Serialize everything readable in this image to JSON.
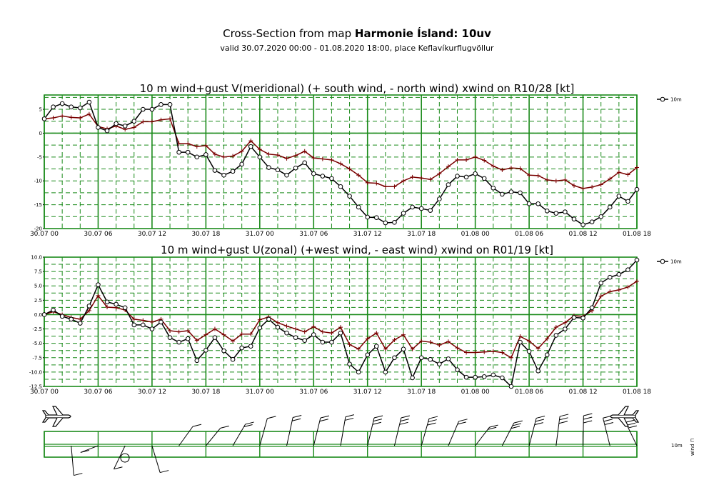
{
  "header": {
    "title_prefix": "Cross-Section from map",
    "title_bold": "Harmonie Ísland: 10uv",
    "subtitle": "valid 30.07.2020 00:00 - 01.08.2020 18:00, place Keflavíkurflugvöllur"
  },
  "colors": {
    "grid": "#1a8a1a",
    "series10m": "#000000",
    "gust": "#7a0000"
  },
  "chart_data": [
    {
      "type": "line",
      "title": "10 m wind+gust V(meridional) (+ south wind, - north wind) xwind on R10/28 [kt]",
      "legend": "10m",
      "x_tick_labels": [
        "30.07 00",
        "30.07 06",
        "30.07 12",
        "30.07 18",
        "31.07 00",
        "31.07 06",
        "31.07 12",
        "31.07 18",
        "01.08 00",
        "01.08 06",
        "01.08 12",
        "01.08 18"
      ],
      "y_tick_labels": [
        "5",
        "0",
        "-5",
        "-10",
        "-15",
        "-20"
      ],
      "y_ticks": [
        5,
        0,
        -5,
        -10,
        -15,
        -20
      ],
      "ylim": [
        -20,
        8
      ],
      "x_hours": [
        0,
        1,
        2,
        3,
        4,
        5,
        6,
        7,
        8,
        9,
        10,
        11,
        12,
        13,
        14,
        15,
        16,
        17,
        18,
        19,
        20,
        21,
        22,
        23,
        24,
        25,
        26,
        27,
        28,
        29,
        30,
        31,
        32,
        33,
        34,
        35,
        36,
        37,
        38,
        39,
        40,
        41,
        42,
        43,
        44,
        45,
        46,
        47,
        48,
        49,
        50,
        51,
        52,
        53,
        54,
        55,
        56,
        57,
        58,
        59,
        60,
        61,
        62,
        63,
        64,
        65,
        66
      ],
      "series": [
        {
          "name": "10m",
          "values": [
            3,
            5.5,
            6.2,
            5.5,
            5.3,
            6.5,
            1.2,
            0.5,
            2,
            1.5,
            2.5,
            5,
            5,
            6,
            6,
            -4,
            -4,
            -5,
            -4.5,
            -7.8,
            -8.8,
            -8,
            -6.5,
            -2.8,
            -5,
            -7.2,
            -7.7,
            -8.8,
            -7.3,
            -6.2,
            -8.5,
            -9,
            -9.5,
            -11.2,
            -13.2,
            -15.5,
            -17.6,
            -17.7,
            -18.8,
            -18.7,
            -16.8,
            -15.5,
            -15.8,
            -16.2,
            -13.8,
            -10.8,
            -9,
            -9.2,
            -8.5,
            -9.5,
            -11.5,
            -12.8,
            -12.3,
            -12.5,
            -14.8,
            -14.8,
            -16.3,
            -16.8,
            -16.5,
            -18,
            -19.2,
            -18.6,
            -17.5,
            -15.5,
            -13.2,
            -14.3,
            -11.8
          ]
        },
        {
          "name": "gust",
          "values": [
            3,
            3.2,
            3.6,
            3.3,
            3.2,
            4,
            1.4,
            0.9,
            1.5,
            0.8,
            1.2,
            2.4,
            2.4,
            2.8,
            3,
            -2.2,
            -2.2,
            -2.8,
            -2.6,
            -4.4,
            -5,
            -4.8,
            -3.8,
            -1.6,
            -3.4,
            -4.4,
            -4.6,
            -5.3,
            -4.7,
            -3.8,
            -5.2,
            -5.4,
            -5.6,
            -6.4,
            -7.5,
            -8.8,
            -10.4,
            -10.5,
            -11.2,
            -11.2,
            -10,
            -9.2,
            -9.4,
            -9.7,
            -8.5,
            -7,
            -5.6,
            -5.6,
            -5,
            -5.7,
            -6.9,
            -7.7,
            -7.3,
            -7.4,
            -8.8,
            -8.9,
            -9.8,
            -10,
            -9.8,
            -11,
            -11.6,
            -11.3,
            -10.8,
            -9.6,
            -8.2,
            -8.7,
            -7.2
          ]
        }
      ]
    },
    {
      "type": "line",
      "title": "10 m wind+gust U(zonal) (+west wind, - east wind) xwind on R01/19 [kt]",
      "legend": "10m",
      "x_tick_labels": [
        "30.07 00",
        "30.07 06",
        "30.07 12",
        "30.07 18",
        "31.07 00",
        "31.07 06",
        "31.07 12",
        "31.07 18",
        "01.08 00",
        "01.08 06",
        "01.08 12",
        "01.08 18"
      ],
      "y_tick_labels": [
        "10.0",
        "7.5",
        "5.0",
        "2.5",
        "0.0",
        "-2.5",
        "-5.0",
        "-7.5",
        "-10.0",
        "-12.5"
      ],
      "y_ticks": [
        10,
        7.5,
        5,
        2.5,
        0,
        -2.5,
        -5,
        -7.5,
        -10,
        -12.5
      ],
      "ylim": [
        -12.5,
        10
      ],
      "x_hours": [
        0,
        1,
        2,
        3,
        4,
        5,
        6,
        7,
        8,
        9,
        10,
        11,
        12,
        13,
        14,
        15,
        16,
        17,
        18,
        19,
        20,
        21,
        22,
        23,
        24,
        25,
        26,
        27,
        28,
        29,
        30,
        31,
        32,
        33,
        34,
        35,
        36,
        37,
        38,
        39,
        40,
        41,
        42,
        43,
        44,
        45,
        46,
        47,
        48,
        49,
        50,
        51,
        52,
        53,
        54,
        55,
        56,
        57,
        58,
        59,
        60,
        61,
        62,
        63,
        64,
        65,
        66
      ],
      "series": [
        {
          "name": "10m",
          "values": [
            0,
            0.8,
            -0.3,
            -0.8,
            -1.5,
            1.5,
            5.2,
            2.2,
            1.8,
            1.2,
            -1.8,
            -1.8,
            -2.5,
            -1.3,
            -4,
            -4.8,
            -4.2,
            -8,
            -6.2,
            -4,
            -6.3,
            -7.8,
            -5.8,
            -5.5,
            -2.3,
            -0.8,
            -2.2,
            -3.2,
            -4,
            -4.5,
            -3.5,
            -4.8,
            -4.8,
            -3.2,
            -8.6,
            -10,
            -7,
            -5.5,
            -10,
            -7.5,
            -6,
            -11,
            -7.5,
            -7.8,
            -8.6,
            -7.7,
            -9.6,
            -10.9,
            -10.9,
            -10.8,
            -10.5,
            -11,
            -12.5,
            -4.8,
            -6.4,
            -9.8,
            -7,
            -3.6,
            -2.5,
            -0.5,
            -0.6,
            1.2,
            5.5,
            6.5,
            7,
            7.8,
            9.5
          ]
        },
        {
          "name": "gust",
          "values": [
            0,
            0.5,
            0,
            -0.5,
            -0.8,
            0.7,
            3.3,
            1.3,
            1.2,
            0.8,
            -0.8,
            -1,
            -1.3,
            -0.8,
            -2.8,
            -3,
            -2.8,
            -4.5,
            -3.5,
            -2.5,
            -3.5,
            -4.6,
            -3.4,
            -3.4,
            -0.9,
            -0.4,
            -1.4,
            -2,
            -2.5,
            -3,
            -2.1,
            -3,
            -3.2,
            -2.2,
            -5.2,
            -6,
            -4.2,
            -3.2,
            -6,
            -4.4,
            -3.5,
            -6,
            -4.6,
            -4.8,
            -5.3,
            -4.7,
            -5.8,
            -6.6,
            -6.6,
            -6.5,
            -6.4,
            -6.6,
            -7.5,
            -3.8,
            -4.6,
            -5.9,
            -4.2,
            -2.2,
            -1.4,
            -0.2,
            -0.3,
            0.7,
            3.2,
            4,
            4.3,
            4.8,
            5.8
          ]
        }
      ]
    }
  ],
  "strip": {
    "label_10m": "10m",
    "label_wind": "wind ⊓"
  }
}
